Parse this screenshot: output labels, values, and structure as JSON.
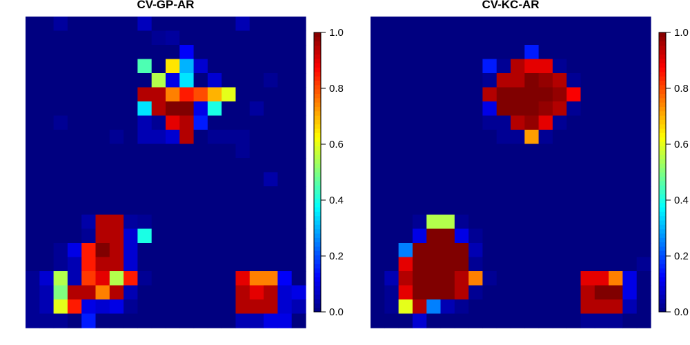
{
  "chart_data": [
    {
      "type": "heatmap",
      "title": "CV-GP-AR",
      "colorbar": {
        "range": [
          0,
          1
        ],
        "ticks": [
          "0.0",
          "0.2",
          "0.4",
          "0.6",
          "0.8",
          "1.0"
        ],
        "colormap": "jet"
      },
      "grid_size": [
        20,
        22
      ],
      "values": [
        [
          0,
          0,
          0.03,
          0,
          0,
          0,
          0,
          0,
          0.06,
          0,
          0,
          0,
          0,
          0,
          0,
          0.05,
          0,
          0,
          0,
          0
        ],
        [
          0,
          0,
          0,
          0,
          0,
          0,
          0,
          0,
          0,
          0.02,
          0.03,
          0,
          0,
          0,
          0,
          0,
          0,
          0,
          0,
          0
        ],
        [
          0,
          0,
          0,
          0,
          0,
          0,
          0,
          0,
          0,
          0,
          0,
          0.12,
          0,
          0,
          0,
          0,
          0,
          0,
          0,
          0
        ],
        [
          0,
          0,
          0,
          0,
          0,
          0,
          0,
          0,
          0.45,
          0,
          0.65,
          0.3,
          0.08,
          0,
          0,
          0,
          0,
          0,
          0,
          0
        ],
        [
          0,
          0,
          0,
          0,
          0,
          0,
          0,
          0,
          0,
          0.55,
          0.1,
          0.35,
          0,
          0.08,
          0,
          0,
          0,
          0.02,
          0,
          0
        ],
        [
          0,
          0,
          0,
          0,
          0,
          0,
          0,
          0,
          0.95,
          0.95,
          0.75,
          0.85,
          0.8,
          0.7,
          0.6,
          0,
          0,
          0,
          0,
          0
        ],
        [
          0,
          0,
          0,
          0,
          0,
          0,
          0,
          0,
          0.35,
          0.95,
          1,
          1,
          0.1,
          0.4,
          0,
          0,
          0.03,
          0,
          0,
          0
        ],
        [
          0,
          0,
          0.02,
          0,
          0,
          0,
          0,
          0,
          0.05,
          0.02,
          0.9,
          0.95,
          0.15,
          0,
          0,
          0,
          0,
          0,
          0,
          0
        ],
        [
          0,
          0,
          0,
          0,
          0,
          0,
          0.02,
          0,
          0.05,
          0.05,
          0.08,
          0.95,
          0,
          0.02,
          0.02,
          0.02,
          0,
          0,
          0,
          0
        ],
        [
          0,
          0,
          0,
          0,
          0,
          0,
          0,
          0,
          0,
          0,
          0,
          0,
          0,
          0,
          0,
          0.02,
          0,
          0,
          0,
          0
        ],
        [
          0,
          0,
          0,
          0,
          0,
          0,
          0,
          0,
          0,
          0,
          0,
          0,
          0,
          0,
          0,
          0,
          0,
          0,
          0,
          0
        ],
        [
          0,
          0,
          0,
          0,
          0,
          0,
          0,
          0,
          0,
          0,
          0,
          0,
          0,
          0,
          0,
          0,
          0,
          0.04,
          0,
          0
        ],
        [
          0,
          0,
          0,
          0,
          0,
          0,
          0,
          0,
          0,
          0,
          0,
          0,
          0,
          0,
          0,
          0,
          0,
          0,
          0,
          0
        ],
        [
          0,
          0,
          0,
          0,
          0,
          0,
          0,
          0,
          0,
          0,
          0,
          0,
          0,
          0,
          0,
          0,
          0,
          0,
          0,
          0
        ],
        [
          0,
          0,
          0,
          0,
          0.04,
          0.95,
          0.95,
          0.03,
          0.02,
          0,
          0,
          0,
          0,
          0,
          0,
          0,
          0,
          0,
          0,
          0
        ],
        [
          0,
          0,
          0,
          0,
          0.02,
          0.95,
          0.95,
          0.08,
          0.4,
          0,
          0,
          0,
          0,
          0,
          0,
          0,
          0,
          0,
          0,
          0
        ],
        [
          0,
          0,
          0.02,
          0.1,
          0.85,
          1,
          0.95,
          0.08,
          0,
          0,
          0,
          0,
          0,
          0,
          0,
          0,
          0,
          0,
          0,
          0
        ],
        [
          0,
          0,
          0.02,
          0.05,
          0.85,
          0.95,
          0.95,
          0.08,
          0,
          0,
          0,
          0,
          0,
          0,
          0,
          0,
          0,
          0,
          0,
          0
        ],
        [
          0.02,
          0.08,
          0.55,
          0.05,
          0.82,
          0.9,
          0.55,
          0.85,
          0.02,
          0,
          0,
          0,
          0,
          0,
          0,
          0.9,
          0.75,
          0.75,
          0.12,
          0
        ],
        [
          0.02,
          0.05,
          0.5,
          0.95,
          0.95,
          0.75,
          0.95,
          0.05,
          0,
          0,
          0,
          0,
          0,
          0,
          0,
          0.95,
          0.9,
          0.95,
          0.08,
          0.1
        ],
        [
          0.02,
          0.05,
          0.6,
          0.85,
          0.1,
          0.08,
          0.1,
          0.02,
          0,
          0,
          0,
          0,
          0,
          0,
          0,
          0.95,
          0.95,
          0.95,
          0.08,
          0.05
        ],
        [
          0.02,
          0.02,
          0.02,
          0,
          0.15,
          0,
          0,
          0,
          0,
          0,
          0,
          0,
          0,
          0,
          0,
          0.05,
          0.05,
          0.1,
          0.1,
          0
        ]
      ]
    },
    {
      "type": "heatmap",
      "title": "CV-KC-AR",
      "colorbar": {
        "range": [
          0,
          1
        ],
        "ticks": [
          "0.0",
          "0.2",
          "0.4",
          "0.6",
          "0.8",
          "1.0"
        ],
        "colormap": "jet"
      },
      "grid_size": [
        20,
        22
      ],
      "values": [
        [
          0,
          0,
          0,
          0,
          0,
          0,
          0,
          0,
          0,
          0,
          0,
          0,
          0,
          0,
          0,
          0,
          0,
          0,
          0,
          0
        ],
        [
          0,
          0,
          0,
          0,
          0,
          0,
          0,
          0,
          0,
          0,
          0,
          0,
          0,
          0,
          0,
          0,
          0,
          0,
          0,
          0
        ],
        [
          0,
          0,
          0,
          0,
          0,
          0,
          0,
          0,
          0,
          0,
          0,
          0.15,
          0,
          0,
          0,
          0,
          0,
          0,
          0,
          0
        ],
        [
          0,
          0,
          0,
          0,
          0,
          0,
          0,
          0,
          0.15,
          0.02,
          0.95,
          0.9,
          0.9,
          0.02,
          0,
          0,
          0,
          0,
          0,
          0
        ],
        [
          0,
          0,
          0,
          0,
          0,
          0,
          0,
          0,
          0.02,
          0.95,
          0.95,
          1,
          0.98,
          0.95,
          0.02,
          0,
          0,
          0,
          0,
          0
        ],
        [
          0,
          0,
          0,
          0,
          0,
          0,
          0,
          0,
          0.95,
          1,
          1,
          1,
          1,
          0.98,
          0.88,
          0,
          0,
          0,
          0,
          0
        ],
        [
          0,
          0,
          0,
          0,
          0,
          0,
          0,
          0,
          0.1,
          1,
          1,
          1,
          0.98,
          0.95,
          0.02,
          0,
          0,
          0,
          0,
          0
        ],
        [
          0,
          0,
          0,
          0,
          0,
          0,
          0,
          0,
          0.02,
          0.02,
          0.95,
          0.98,
          0.9,
          0.02,
          0,
          0,
          0,
          0,
          0,
          0
        ],
        [
          0,
          0,
          0,
          0,
          0,
          0,
          0,
          0,
          0,
          0.02,
          0.02,
          0.72,
          0.02,
          0,
          0,
          0,
          0,
          0,
          0,
          0
        ],
        [
          0,
          0,
          0,
          0,
          0,
          0,
          0,
          0,
          0,
          0,
          0,
          0,
          0,
          0,
          0,
          0,
          0,
          0,
          0,
          0
        ],
        [
          0,
          0,
          0,
          0,
          0,
          0,
          0,
          0,
          0,
          0,
          0,
          0,
          0,
          0,
          0,
          0,
          0,
          0,
          0,
          0
        ],
        [
          0,
          0,
          0,
          0,
          0,
          0,
          0,
          0,
          0,
          0,
          0,
          0,
          0,
          0,
          0,
          0,
          0,
          0,
          0,
          0
        ],
        [
          0,
          0,
          0,
          0,
          0,
          0,
          0,
          0,
          0,
          0,
          0,
          0,
          0,
          0,
          0,
          0,
          0,
          0,
          0,
          0
        ],
        [
          0,
          0,
          0,
          0,
          0,
          0,
          0,
          0,
          0,
          0,
          0,
          0,
          0,
          0,
          0,
          0,
          0,
          0,
          0,
          0
        ],
        [
          0,
          0,
          0,
          0.02,
          0.55,
          0.55,
          0.02,
          0,
          0,
          0,
          0,
          0,
          0,
          0,
          0,
          0,
          0,
          0,
          0,
          0
        ],
        [
          0,
          0,
          0,
          0.1,
          1,
          1,
          0.1,
          0.02,
          0,
          0,
          0,
          0,
          0,
          0,
          0,
          0,
          0,
          0,
          0,
          0
        ],
        [
          0,
          0,
          0.25,
          1,
          1,
          1,
          1,
          0.05,
          0,
          0,
          0,
          0,
          0,
          0,
          0,
          0,
          0,
          0,
          0,
          0
        ],
        [
          0,
          0,
          0.9,
          1,
          1,
          1,
          1,
          0.02,
          0,
          0,
          0,
          0,
          0,
          0,
          0,
          0,
          0,
          0,
          0,
          0.02
        ],
        [
          0,
          0.05,
          0.95,
          1,
          1,
          1,
          0.95,
          0.75,
          0.02,
          0,
          0,
          0,
          0,
          0,
          0,
          0.9,
          0.9,
          0.75,
          0.1,
          0
        ],
        [
          0,
          0.02,
          0.9,
          1,
          1,
          1,
          0.95,
          0.02,
          0,
          0,
          0,
          0,
          0,
          0,
          0,
          0.95,
          1,
          1,
          0.1,
          0
        ],
        [
          0,
          0.02,
          0.6,
          0.95,
          0.25,
          0.05,
          0.02,
          0,
          0,
          0,
          0,
          0,
          0,
          0,
          0,
          0.95,
          0.95,
          0.95,
          0.05,
          0
        ],
        [
          0,
          0,
          0,
          0.08,
          0,
          0,
          0,
          0,
          0,
          0,
          0,
          0,
          0,
          0,
          0,
          0.02,
          0.02,
          0.02,
          0,
          0
        ]
      ]
    }
  ]
}
